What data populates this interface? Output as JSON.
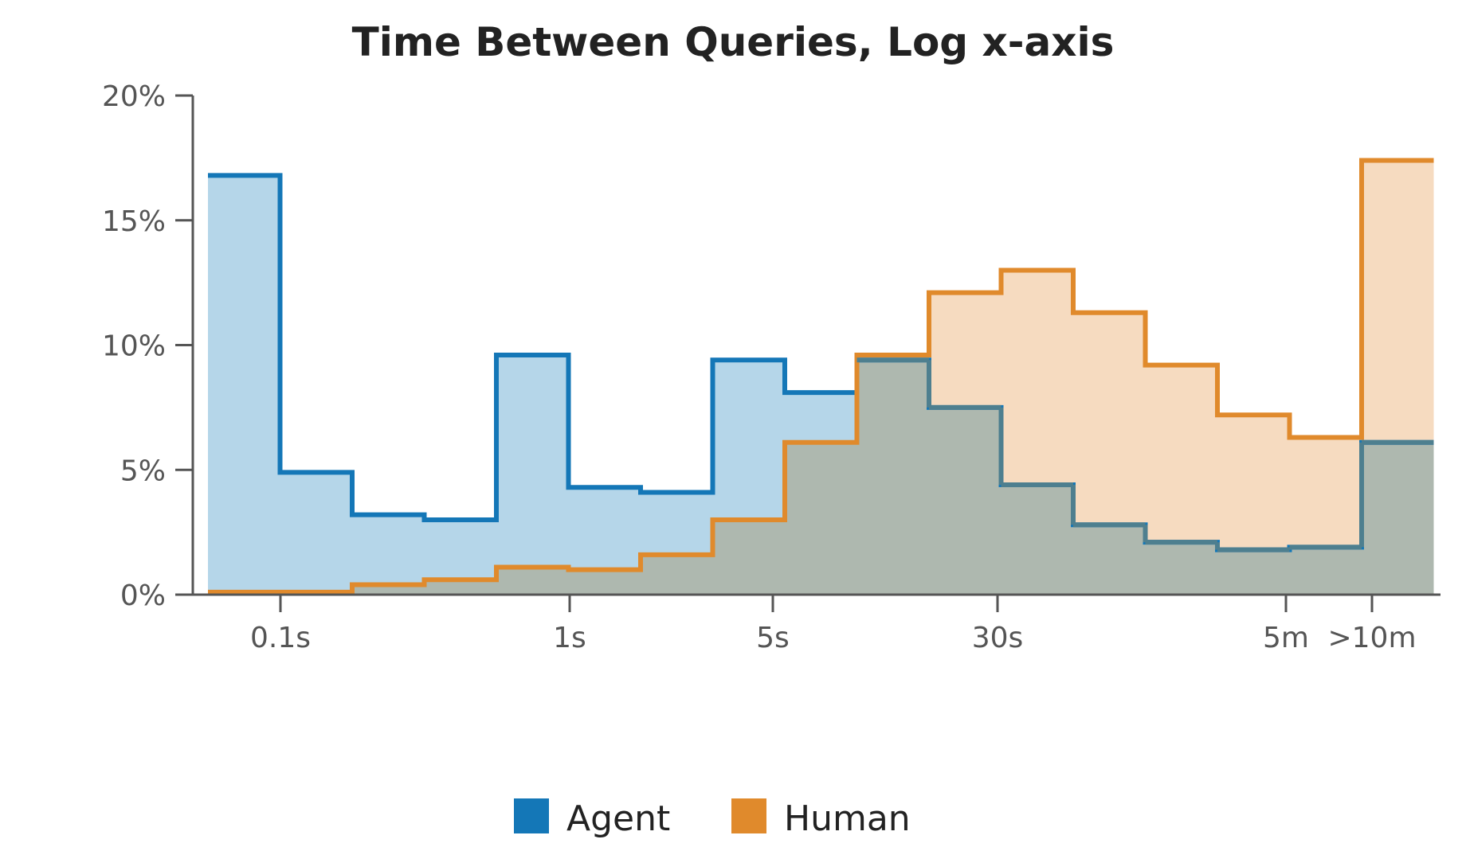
{
  "chart_data": {
    "type": "area",
    "style": "step-histogram",
    "title": "Time Between Queries, Log x-axis",
    "xlabel": "",
    "ylabel": "",
    "x_scale": "log",
    "y_range": [
      0,
      20
    ],
    "y_ticks": [
      0,
      5,
      10,
      15,
      20
    ],
    "y_tick_labels": [
      "0%",
      "5%",
      "10%",
      "15%",
      "20%"
    ],
    "x_ticks": [
      "0.1s",
      "1s",
      "5s",
      "30s",
      "5m",
      ">10m"
    ],
    "bins": 17,
    "grid": false,
    "legend_position": "bottom-center",
    "series": [
      {
        "name": "Agent",
        "color": "#1477b7",
        "fill": "#b5d6e9",
        "values": [
          16.8,
          4.9,
          3.2,
          3.0,
          9.6,
          4.3,
          4.1,
          9.4,
          8.1,
          9.4,
          7.5,
          4.4,
          2.8,
          2.1,
          1.8,
          1.9,
          6.1
        ]
      },
      {
        "name": "Human",
        "color": "#e08a2c",
        "fill": "#f6dbc0",
        "values": [
          0.1,
          0.1,
          0.4,
          0.6,
          1.1,
          1.0,
          1.6,
          3.0,
          6.1,
          9.6,
          12.1,
          13.0,
          11.3,
          9.2,
          7.2,
          6.3,
          17.4
        ]
      }
    ]
  }
}
